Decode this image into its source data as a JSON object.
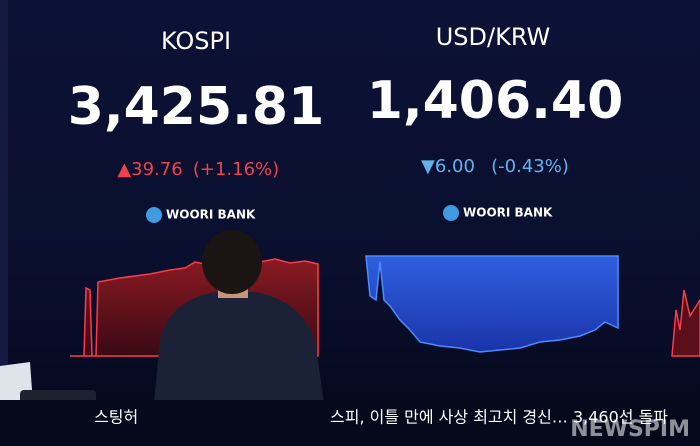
{
  "panels": [
    {
      "label": "KOSPI",
      "value": "3,425.81",
      "change": "▲39.76",
      "change_pct": "(+1.16%)",
      "brand": "WOORI BANK"
    },
    {
      "label": "USD/KRW",
      "value": "1,406.40",
      "change": "▼6.00",
      "change_pct": "(-0.43%)",
      "brand": "WOORI BANK"
    }
  ],
  "ticker": {
    "left": "스팅허",
    "headline": "스피, 이틀 만에 사상 최고치 경신… 3,460선 돌파"
  },
  "watermark": "NEWSPIM"
}
